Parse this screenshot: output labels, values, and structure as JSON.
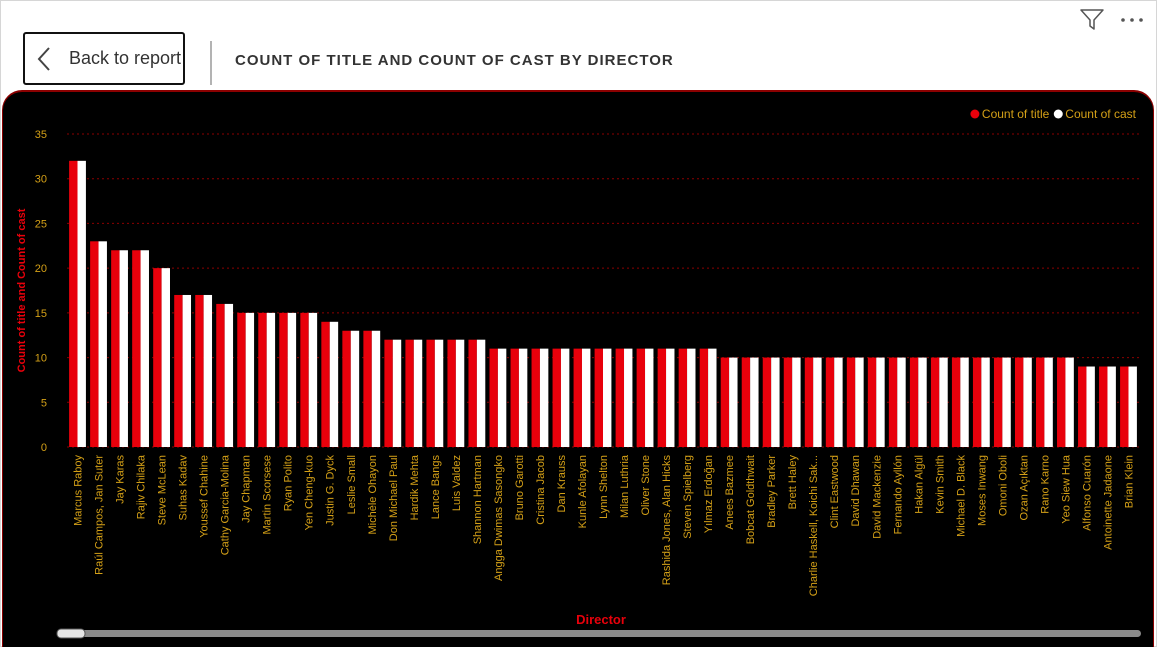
{
  "header": {
    "back_label": "Back to report",
    "title": "COUNT OF TITLE AND COUNT OF CAST BY DIRECTOR",
    "filter_icon": "filter-icon",
    "more_icon": "more-options-icon"
  },
  "colors": {
    "title_series": "#e8000b",
    "cast_series": "#ffffff",
    "axis_text": "#d4a017",
    "axis_title": "#e8000b",
    "background": "#000000",
    "grid": "#8b0000"
  },
  "chart_data": {
    "type": "bar",
    "title": "",
    "xlabel": "Director",
    "ylabel": "Count of title and Count of cast",
    "ylim": [
      0,
      35
    ],
    "yticks": [
      0,
      5,
      10,
      15,
      20,
      25,
      30,
      35
    ],
    "grid": true,
    "legend_position": "top-right",
    "categories": [
      "Marcus Raboy",
      "Raúl Campos, Jan Suter",
      "Jay Karas",
      "Rajiv Chilaka",
      "Steve McLean",
      "Suhas Kadav",
      "Youssef Chahine",
      "Cathy Garcia-Molina",
      "Jay Chapman",
      "Martin Scorsese",
      "Ryan Polito",
      "Yen Cheng-kuo",
      "Justin G. Dyck",
      "Leslie Small",
      "Michèle Ohayon",
      "Don Michael Paul",
      "Hardik Mehta",
      "Lance Bangs",
      "Luis Valdez",
      "Shannon Hartman",
      "Angga Dwimas Sasongko",
      "Bruno Garotti",
      "Cristina Jacob",
      "Dan Krauss",
      "Kunle Afolayan",
      "Lynn Shelton",
      "Milan Luthria",
      "Oliver Stone",
      "Rashida Jones, Alan Hicks",
      "Steven Spielberg",
      "Yılmaz Erdoğan",
      "Anees Bazmee",
      "Bobcat Goldthwait",
      "Bradley Parker",
      "Brett Haley",
      "Charlie Haskell, Koichi Sak...",
      "Clint Eastwood",
      "David Dhawan",
      "David Mackenzie",
      "Fernando Ayllón",
      "Hakan Algül",
      "Kevin Smith",
      "Michael D. Black",
      "Moses Inwang",
      "Omoni Oboli",
      "Ozan Açıktan",
      "Rano Karno",
      "Yeo Siew Hua",
      "Alfonso Cuarón",
      "Antoinette Jadaone",
      "Brian Klein"
    ],
    "series": [
      {
        "name": "Count of title",
        "values": [
          32,
          23,
          22,
          22,
          20,
          17,
          17,
          16,
          15,
          15,
          15,
          15,
          14,
          13,
          13,
          12,
          12,
          12,
          12,
          12,
          11,
          11,
          11,
          11,
          11,
          11,
          11,
          11,
          11,
          11,
          11,
          10,
          10,
          10,
          10,
          10,
          10,
          10,
          10,
          10,
          10,
          10,
          10,
          10,
          10,
          10,
          10,
          10,
          9,
          9,
          9
        ]
      },
      {
        "name": "Count of cast",
        "values": [
          32,
          23,
          22,
          22,
          20,
          17,
          17,
          16,
          15,
          15,
          15,
          15,
          14,
          13,
          13,
          12,
          12,
          12,
          12,
          12,
          11,
          11,
          11,
          11,
          11,
          11,
          11,
          11,
          11,
          11,
          11,
          10,
          10,
          10,
          10,
          10,
          10,
          10,
          10,
          10,
          10,
          10,
          10,
          10,
          10,
          10,
          10,
          10,
          9,
          9,
          9
        ]
      }
    ]
  }
}
